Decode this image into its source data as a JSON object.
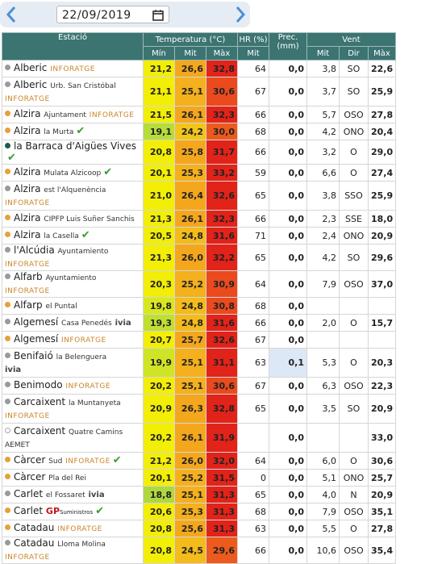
{
  "date": "22/09/2019",
  "table": {
    "headers": {
      "station": "Estació",
      "temp": "Temperatura (°C)",
      "hr": "HR (%)",
      "prec": "Prec. (mm)",
      "wind": "Vent",
      "sub": [
        "Mín",
        "Mit",
        "Màx",
        "Mit",
        "Mit",
        "Dir",
        "Màx"
      ]
    },
    "rows": [
      {
        "name": "Alberic",
        "source": "INFORATGE",
        "dot": "#9a9a9a",
        "cells": [
          "21,2",
          "26,6",
          "32,8",
          "64",
          "0,0",
          "3,8",
          "SO",
          "22,6"
        ],
        "colors": [
          "#f2ee05",
          "#f4a71d",
          "#e2231a"
        ]
      },
      {
        "name": "Alberic",
        "place": "Urb. San Cristóbal",
        "source": "INFORATGE",
        "dot": "#9a9a9a",
        "cells": [
          "21,1",
          "25,1",
          "30,6",
          "67",
          "0,0",
          "3,7",
          "SO",
          "25,9"
        ],
        "colors": [
          "#f2ee05",
          "#f4b01d",
          "#ea4a1e"
        ]
      },
      {
        "name": "Alzira",
        "place": "Ajuntament",
        "source": "INFORATGE",
        "dot": "#e6a13a",
        "cells": [
          "21,5",
          "26,1",
          "32,3",
          "66",
          "0,0",
          "5,7",
          "OSO",
          "27,8"
        ],
        "colors": [
          "#f2ee05",
          "#f4a71d",
          "#e2231a"
        ]
      },
      {
        "name": "Alzira",
        "place": "la Murta",
        "check": true,
        "dot": "#e6a13a",
        "cells": [
          "19,1",
          "24,2",
          "30,0",
          "68",
          "0,0",
          "4,2",
          "ONO",
          "20,4"
        ],
        "colors": [
          "#b6dd3a",
          "#f1c51a",
          "#ec5a1e"
        ]
      },
      {
        "name": "la Barraca d'Aigües Vives",
        "check": true,
        "dot": "#1d5a4c",
        "cells": [
          "20,8",
          "25,8",
          "31,7",
          "66",
          "0,0",
          "3,2",
          "O",
          "29,0"
        ],
        "colors": [
          "#f2ee05",
          "#f4a71d",
          "#e2231a"
        ]
      },
      {
        "name": "Alzira",
        "place": "Mulata Alzicoop",
        "check": true,
        "dot": "#e6a13a",
        "cells": [
          "20,1",
          "25,3",
          "33,2",
          "59",
          "0,0",
          "6,6",
          "O",
          "27,4"
        ],
        "colors": [
          "#f2ee05",
          "#f4b01d",
          "#e2231a"
        ]
      },
      {
        "name": "Alzira",
        "place": "est l'Alquenència",
        "source": "INFORATGE",
        "dot": "#9a9a9a",
        "cells": [
          "21,0",
          "26,4",
          "32,6",
          "65",
          "0,0",
          "3,8",
          "SSO",
          "25,9"
        ],
        "colors": [
          "#f2ee05",
          "#f4a71d",
          "#e2231a"
        ]
      },
      {
        "name": "Alzira",
        "place": "CIPFP Luis Suñer Sanchis",
        "dot": "#e6a13a",
        "cells": [
          "21,3",
          "26,1",
          "32,3",
          "66",
          "0,0",
          "2,3",
          "SSE",
          "18,0"
        ],
        "colors": [
          "#f2ee05",
          "#f4a71d",
          "#e2231a"
        ]
      },
      {
        "name": "Alzira",
        "place": "la Casella",
        "check": true,
        "dot": "#e6a13a",
        "cells": [
          "20,5",
          "24,8",
          "31,6",
          "71",
          "0,0",
          "2,4",
          "ONO",
          "20,9"
        ],
        "colors": [
          "#f2ee05",
          "#f3bb1b",
          "#e2231a"
        ]
      },
      {
        "name": "l'Alcúdia",
        "place": "Ayuntamiento",
        "source": "INFORATGE",
        "dot": "#9a9a9a",
        "cells": [
          "21,3",
          "26,0",
          "32,2",
          "65",
          "0,0",
          "4,2",
          "SO",
          "29,6"
        ],
        "colors": [
          "#f2ee05",
          "#f4a71d",
          "#e2231a"
        ]
      },
      {
        "name": "Alfarb",
        "place": "Ayuntamiento",
        "source": "INFORATGE",
        "dot": "#9a9a9a",
        "cells": [
          "20,3",
          "25,2",
          "30,9",
          "64",
          "0,0",
          "7,9",
          "OSO",
          "37,0"
        ],
        "colors": [
          "#f2ee05",
          "#f4b01d",
          "#ea4a1e"
        ]
      },
      {
        "name": "Alfarp",
        "place": "el Puntal",
        "dot": "#e6a13a",
        "cells": [
          "19,8",
          "24,8",
          "30,8",
          "68",
          "0,0",
          null,
          null,
          null
        ],
        "colors": [
          "#d8e820",
          "#f3bb1b",
          "#ea4a1e"
        ]
      },
      {
        "name": "Algemesí",
        "place": "Casa Penedés",
        "source": "ivia",
        "dot": "#9a9a9a",
        "cells": [
          "19,3",
          "24,8",
          "31,6",
          "66",
          "0,0",
          "2,0",
          "O",
          "15,7"
        ],
        "colors": [
          "#bfe030",
          "#f3bb1b",
          "#e2231a"
        ]
      },
      {
        "name": "Algemesí",
        "source": "INFORATGE",
        "dot": "#e6a13a",
        "cells": [
          "20,7",
          "25,7",
          "32,6",
          "67",
          "0,0",
          null,
          null,
          null
        ],
        "colors": [
          "#f2ee05",
          "#f4a71d",
          "#e2231a"
        ]
      },
      {
        "name": "Benifaió",
        "place": "la Belenguera",
        "source": "ivia",
        "dot": "#9a9a9a",
        "cells": [
          "19,9",
          "25,1",
          "31,1",
          "63",
          "0,1",
          "5,3",
          "O",
          "20,3"
        ],
        "colors": [
          "#d0e426",
          "#f4b01d",
          "#e2231a"
        ]
      },
      {
        "name": "Benimodo",
        "source": "INFORATGE",
        "dot": "#9a9a9a",
        "cells": [
          "20,2",
          "25,1",
          "30,6",
          "67",
          "0,0",
          "6,3",
          "OSO",
          "22,3"
        ],
        "colors": [
          "#f2ee05",
          "#f4b01d",
          "#ea4a1e"
        ]
      },
      {
        "name": "Carcaixent",
        "place": "la Muntanyeta",
        "source": "INFORATGE",
        "dot": "#9a9a9a",
        "cells": [
          "20,9",
          "26,3",
          "32,8",
          "65",
          "0,0",
          "3,5",
          "SO",
          "20,9"
        ],
        "colors": [
          "#f2ee05",
          "#f4a71d",
          "#e2231a"
        ]
      },
      {
        "name": "Carcaixent",
        "place": "Quatre Camins",
        "source": "AEMET",
        "dot": "#ffffff",
        "cells": [
          "20,2",
          "26,1",
          "31,9",
          null,
          "0,0",
          null,
          null,
          "33,0"
        ],
        "colors": [
          "#f2ee05",
          "#f4a71d",
          "#e2231a"
        ]
      },
      {
        "name": "Càrcer",
        "place": "Sud",
        "source": "INFORATGE",
        "check": true,
        "dot": "#e6a13a",
        "cells": [
          "21,2",
          "26,0",
          "32,0",
          "64",
          "0,0",
          "6,0",
          "O",
          "30,6"
        ],
        "colors": [
          "#f2ee05",
          "#f4a71d",
          "#e2231a"
        ]
      },
      {
        "name": "Càrcer",
        "place": "Pla del Rei",
        "dot": "#e6a13a",
        "cells": [
          "20,1",
          "25,2",
          "31,5",
          "0",
          "0,0",
          "5,1",
          "ONO",
          "25,7"
        ],
        "colors": [
          "#f2ee05",
          "#f4b01d",
          "#e2231a"
        ]
      },
      {
        "name": "Carlet",
        "place": "el Fossaret",
        "source": "ivia",
        "dot": "#9a9a9a",
        "cells": [
          "18,8",
          "25,1",
          "31,3",
          "65",
          "0,0",
          "4,0",
          "N",
          "20,9"
        ],
        "colors": [
          "#aed83e",
          "#f4b01d",
          "#e2231a"
        ]
      },
      {
        "name": "Carlet",
        "source": "GP",
        "source_sub": "Suministros",
        "check": true,
        "dot": "#e6a13a",
        "cells": [
          "20,6",
          "25,3",
          "31,3",
          "68",
          "0,0",
          "7,9",
          "OSO",
          "35,1"
        ],
        "colors": [
          "#f2ee05",
          "#f4b01d",
          "#e2231a"
        ]
      },
      {
        "name": "Catadau",
        "source": "INFORATGE",
        "dot": "#e6a13a",
        "cells": [
          "20,8",
          "25,6",
          "31,3",
          "63",
          "0,0",
          "5,5",
          "O",
          "27,8"
        ],
        "colors": [
          "#f2ee05",
          "#f4a71d",
          "#e2231a"
        ]
      },
      {
        "name": "Catadau",
        "place": "Lloma Molina",
        "source": "INFORATGE",
        "dot": "#9a9a9a",
        "cells": [
          "20,8",
          "24,5",
          "29,6",
          "66",
          "0,0",
          "10,6",
          "OSO",
          "35,4"
        ],
        "colors": [
          "#f2ee05",
          "#f3bb1b",
          "#ec5a1e"
        ]
      }
    ]
  }
}
